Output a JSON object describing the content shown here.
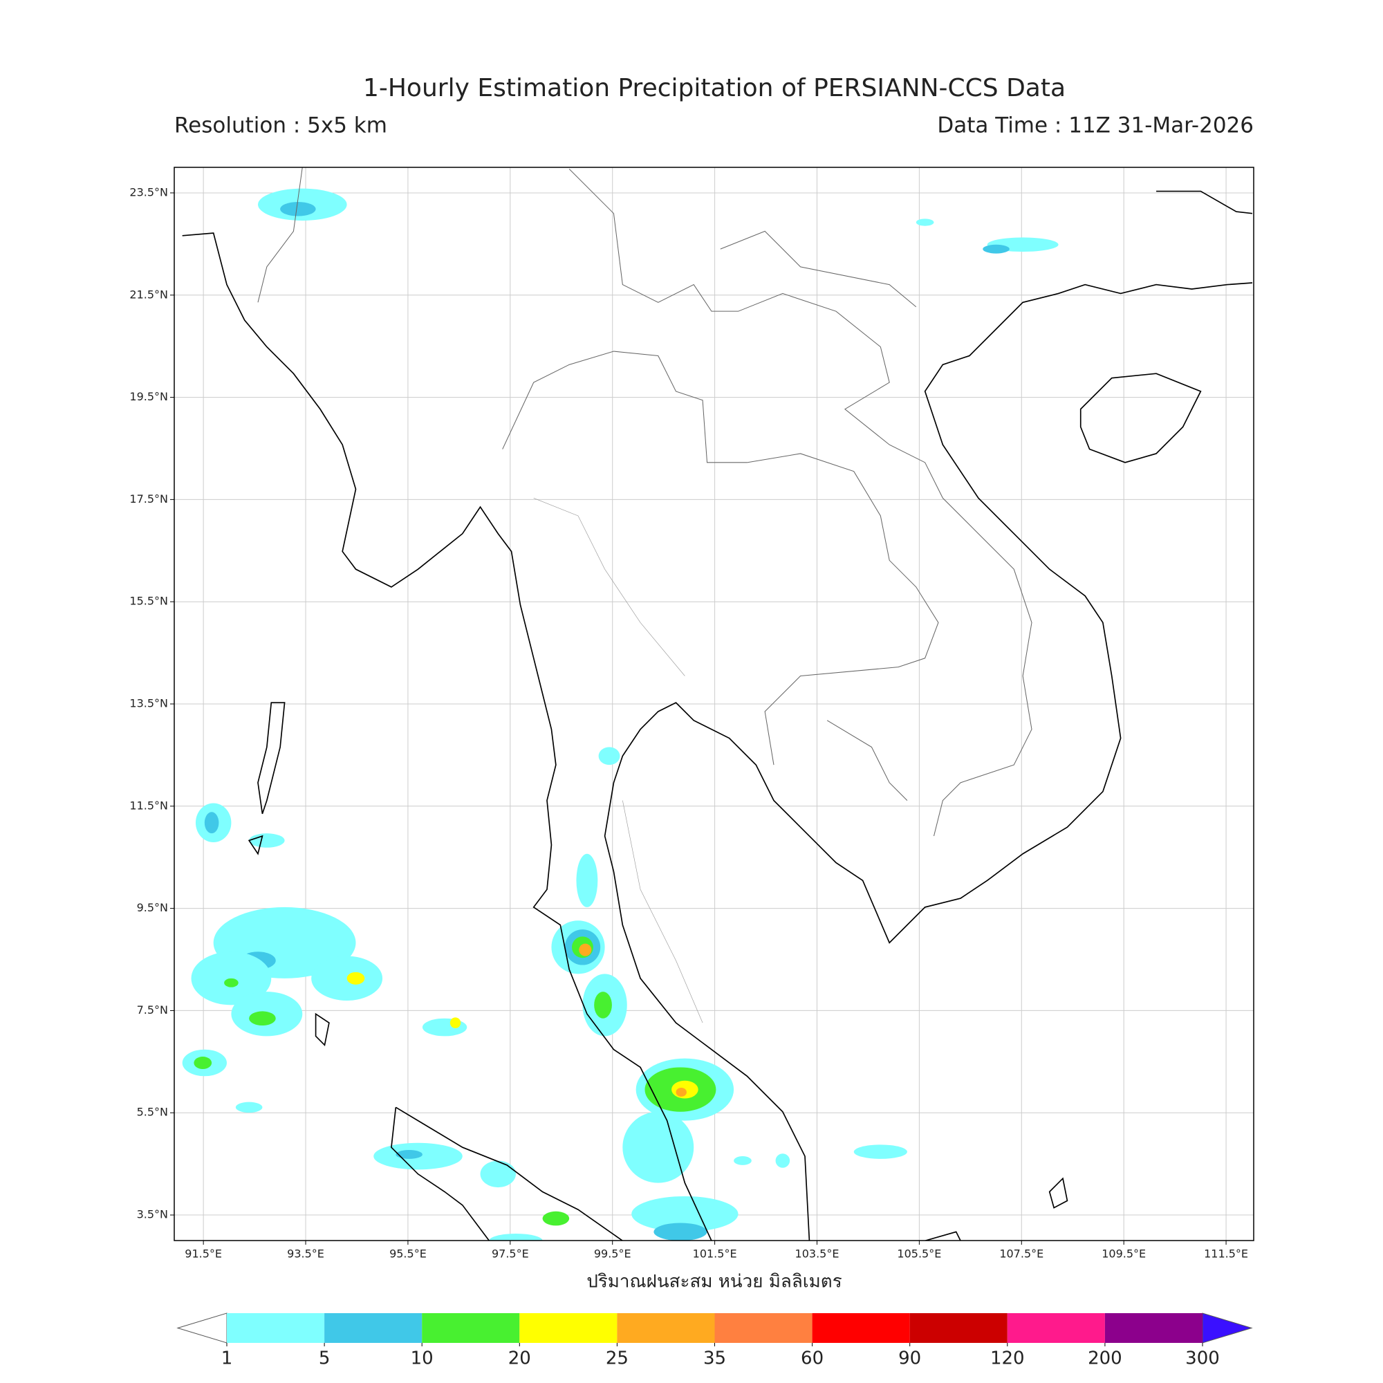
{
  "title": "1-Hourly Estimation Precipitation of PERSIANN-CCS Data",
  "subtitle_left": "Resolution : 5x5 km",
  "subtitle_right": "Data Time : 11Z 31-Mar-2026",
  "map": {
    "lonlim": [
      90.93,
      112.04
    ],
    "latlim": [
      3.0,
      24.0
    ],
    "lon_ticks": [
      {
        "value": 91.5,
        "label": "91.5°E"
      },
      {
        "value": 93.5,
        "label": "93.5°E"
      },
      {
        "value": 95.5,
        "label": "95.5°E"
      },
      {
        "value": 97.5,
        "label": "97.5°E"
      },
      {
        "value": 99.5,
        "label": "99.5°E"
      },
      {
        "value": 101.5,
        "label": "101.5°E"
      },
      {
        "value": 103.5,
        "label": "103.5°E"
      },
      {
        "value": 105.5,
        "label": "105.5°E"
      },
      {
        "value": 107.5,
        "label": "107.5°E"
      },
      {
        "value": 109.5,
        "label": "109.5°E"
      },
      {
        "value": 111.5,
        "label": "111.5°E"
      }
    ],
    "lat_ticks": [
      {
        "value": 23.5,
        "label": "23.5°N"
      },
      {
        "value": 21.5,
        "label": "21.5°N"
      },
      {
        "value": 19.5,
        "label": "19.5°N"
      },
      {
        "value": 17.5,
        "label": "17.5°N"
      },
      {
        "value": 15.5,
        "label": "15.5°N"
      },
      {
        "value": 13.5,
        "label": "13.5°N"
      },
      {
        "value": 11.5,
        "label": "11.5°N"
      },
      {
        "value": 9.5,
        "label": "9.5°N"
      },
      {
        "value": 7.5,
        "label": "7.5°N"
      },
      {
        "value": 5.5,
        "label": "5.5°N"
      },
      {
        "value": 3.5,
        "label": "3.5°N"
      }
    ],
    "grid": true
  },
  "colorbar": {
    "label": "ปริมาณฝนสะสม หน่วย มิลลิเมตร",
    "levels": [
      1,
      5,
      10,
      20,
      25,
      35,
      60,
      90,
      120,
      200,
      300
    ],
    "colors": [
      "#7fffff",
      "#40c8e8",
      "#48f030",
      "#ffff00",
      "#ffaa20",
      "#ff8040",
      "#ff0000",
      "#cc0000",
      "#ff1a8c",
      "#8c008c"
    ],
    "under_color": "#ffffff",
    "over_color": "#3a10ff"
  }
}
